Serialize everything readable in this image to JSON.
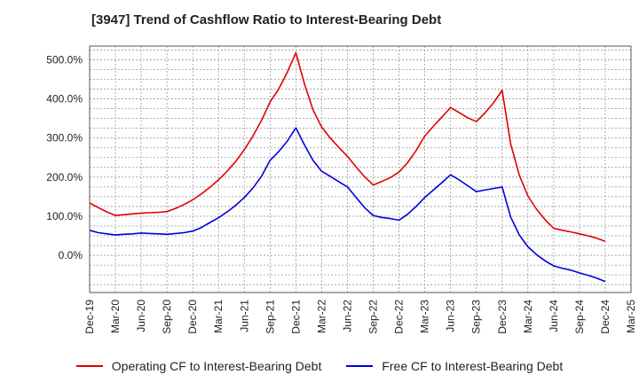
{
  "title": "[3947]  Trend of Cashflow Ratio to Interest-Bearing Debt",
  "colors": {
    "operating": "#e00000",
    "free": "#0000dd",
    "grid": "#999999",
    "axis": "#555555"
  },
  "chart_data": {
    "type": "line",
    "title": "[3947]  Trend of Cashflow Ratio to Interest-Bearing Debt",
    "xlabel": "",
    "ylabel": "",
    "ylim": [
      -95,
      535
    ],
    "y_ticks": [
      {
        "value": 0,
        "label": "0.0%"
      },
      {
        "value": 100,
        "label": "100.0%"
      },
      {
        "value": 200,
        "label": "200.0%"
      },
      {
        "value": 300,
        "label": "300.0%"
      },
      {
        "value": 400,
        "label": "400.0%"
      },
      {
        "value": 500,
        "label": "500.0%"
      }
    ],
    "x_ticks": [
      "Dec-19",
      "Mar-20",
      "Jun-20",
      "Sep-20",
      "Dec-20",
      "Mar-21",
      "Jun-21",
      "Sep-21",
      "Dec-21",
      "Mar-22",
      "Jun-22",
      "Sep-22",
      "Dec-22",
      "Mar-23",
      "Jun-23",
      "Sep-23",
      "Dec-23",
      "Mar-24",
      "Jun-24",
      "Sep-24",
      "Dec-24",
      "Mar-25"
    ],
    "x": [
      "Dec-19",
      "Jan-20",
      "Feb-20",
      "Mar-20",
      "Apr-20",
      "May-20",
      "Jun-20",
      "Jul-20",
      "Aug-20",
      "Sep-20",
      "Oct-20",
      "Nov-20",
      "Dec-20",
      "Jan-21",
      "Feb-21",
      "Mar-21",
      "Apr-21",
      "May-21",
      "Jun-21",
      "Jul-21",
      "Aug-21",
      "Sep-21",
      "Oct-21",
      "Nov-21",
      "Dec-21",
      "Jan-22",
      "Feb-22",
      "Mar-22",
      "Apr-22",
      "May-22",
      "Jun-22",
      "Jul-22",
      "Aug-22",
      "Sep-22",
      "Oct-22",
      "Nov-22",
      "Dec-22",
      "Jan-23",
      "Feb-23",
      "Mar-23",
      "Apr-23",
      "May-23",
      "Jun-23",
      "Jul-23",
      "Aug-23",
      "Sep-23",
      "Oct-23",
      "Nov-23",
      "Dec-23",
      "Jan-24",
      "Feb-24",
      "Mar-24",
      "Apr-24",
      "May-24",
      "Jun-24",
      "Jul-24",
      "Aug-24",
      "Sep-24",
      "Oct-24",
      "Nov-24",
      "Dec-24"
    ],
    "series": [
      {
        "name": "Operating CF to Interest-Bearing Debt",
        "color": "#e00000",
        "values": [
          134,
          122,
          111,
          102,
          104,
          106,
          108,
          109,
          110,
          112,
          120,
          130,
          142,
          157,
          174,
          193,
          215,
          240,
          270,
          305,
          345,
          392,
          425,
          468,
          518,
          438,
          372,
          328,
          300,
          276,
          253,
          226,
          201,
          180,
          189,
          199,
          213,
          237,
          268,
          305,
          330,
          354,
          378,
          365,
          352,
          342,
          364,
          390,
          422,
          285,
          205,
          152,
          118,
          91,
          69,
          64,
          60,
          55,
          50,
          44,
          36
        ]
      },
      {
        "name": "Free CF to Interest-Bearing Debt",
        "color": "#0000dd",
        "values": [
          64,
          58,
          55,
          52,
          54,
          55,
          57,
          56,
          55,
          54,
          56,
          58,
          62,
          71,
          84,
          96,
          111,
          128,
          148,
          172,
          202,
          243,
          265,
          292,
          326,
          282,
          243,
          215,
          202,
          188,
          175,
          148,
          122,
          102,
          97,
          94,
          90,
          105,
          125,
          148,
          167,
          186,
          206,
          193,
          178,
          163,
          167,
          171,
          175,
          98,
          52,
          22,
          2,
          -14,
          -27,
          -33,
          -38,
          -45,
          -51,
          -58,
          -67
        ]
      }
    ],
    "legend_position": "bottom",
    "grid": true
  }
}
